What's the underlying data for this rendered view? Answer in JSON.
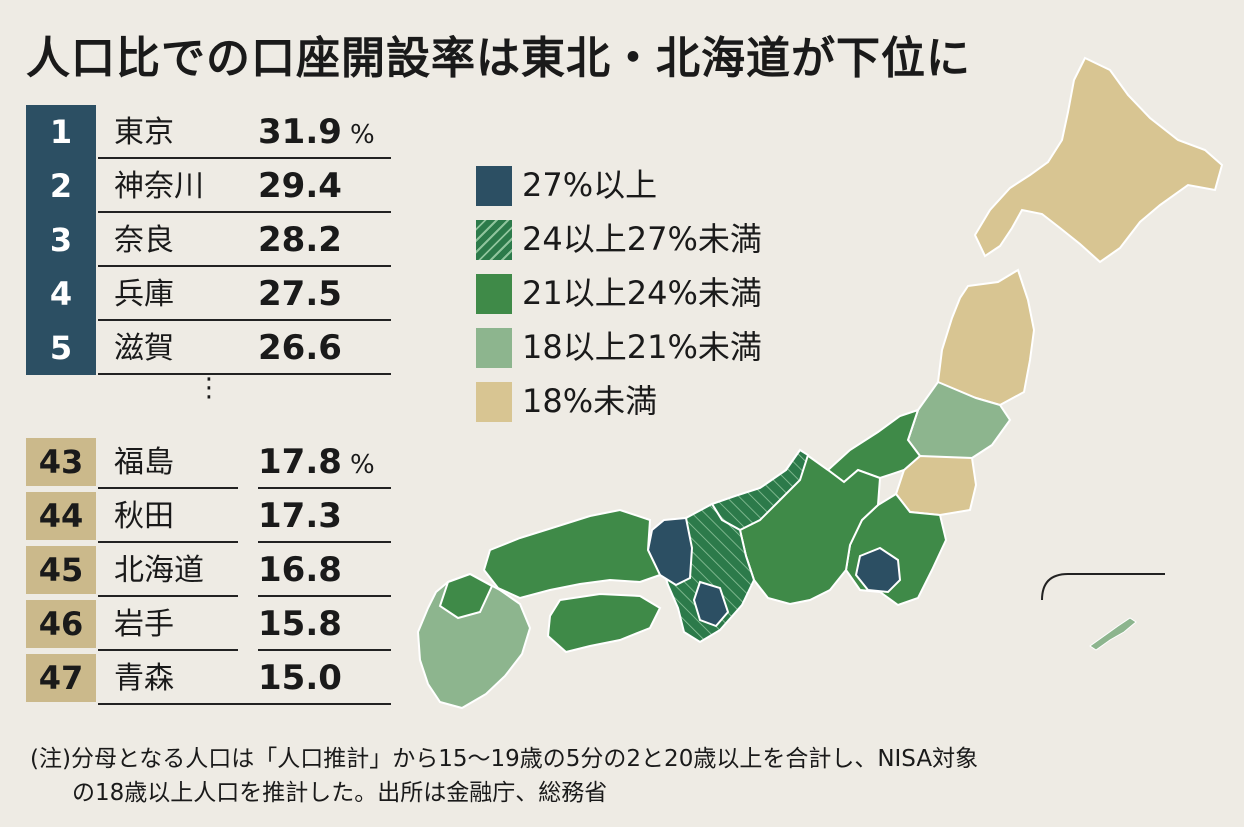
{
  "title": "人口比での口座開設率は東北・北海道が下位に",
  "top_ranks": [
    {
      "rank": "1",
      "prefecture": "東京",
      "value": "31.9",
      "unit": "%"
    },
    {
      "rank": "2",
      "prefecture": "神奈川",
      "value": "29.4",
      "unit": ""
    },
    {
      "rank": "3",
      "prefecture": "奈良",
      "value": "28.2",
      "unit": ""
    },
    {
      "rank": "4",
      "prefecture": "兵庫",
      "value": "27.5",
      "unit": ""
    },
    {
      "rank": "5",
      "prefecture": "滋賀",
      "value": "26.6",
      "unit": ""
    }
  ],
  "ellipsis": "⋮",
  "bottom_ranks": [
    {
      "rank": "43",
      "prefecture": "福島",
      "value": "17.8",
      "unit": "%"
    },
    {
      "rank": "44",
      "prefecture": "秋田",
      "value": "17.3",
      "unit": ""
    },
    {
      "rank": "45",
      "prefecture": "北海道",
      "value": "16.8",
      "unit": ""
    },
    {
      "rank": "46",
      "prefecture": "岩手",
      "value": "15.8",
      "unit": ""
    },
    {
      "rank": "47",
      "prefecture": "青森",
      "value": "15.0",
      "unit": ""
    }
  ],
  "legend": [
    {
      "label": "27%以上",
      "color": "#2c4f63",
      "hatch": false
    },
    {
      "label": "24以上27%未満",
      "color": "#2c7a4a",
      "hatch": true
    },
    {
      "label": "21以上24%未満",
      "color": "#3f8a48",
      "hatch": false
    },
    {
      "label": "18以上21%未満",
      "color": "#8db58e",
      "hatch": false
    },
    {
      "label": "18%未満",
      "color": "#d8c592",
      "hatch": false
    }
  ],
  "note_line1": "(注)分母となる人口は「人口推計」から15〜19歳の5分の2と20歳以上を合計し、NISA対象",
  "note_line2": "の18歳以上人口を推計した。出所は金融庁、総務省"
}
